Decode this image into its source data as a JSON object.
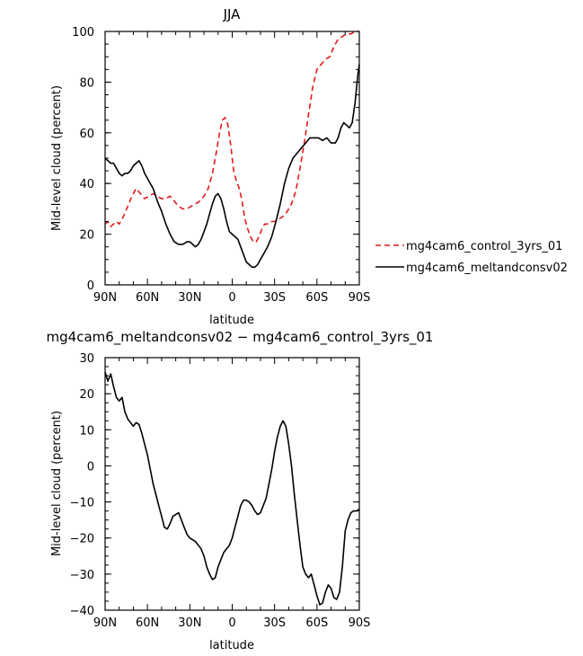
{
  "chart_data": [
    {
      "type": "line",
      "title": "JJA",
      "xlabel": "latitude",
      "ylabel": "Mid-level cloud (percent)",
      "xlim": [
        90,
        -90
      ],
      "ylim": [
        0,
        100
      ],
      "x_ticks": [
        90,
        60,
        30,
        0,
        -30,
        -60,
        -90
      ],
      "x_tick_labels": [
        "90N",
        "60N",
        "30N",
        "0",
        "30S",
        "60S",
        "90S"
      ],
      "y_ticks": [
        0,
        20,
        40,
        60,
        80,
        100
      ],
      "y_tick_labels": [
        "0",
        "20",
        "40",
        "60",
        "80",
        "100"
      ],
      "legend_position": "outside-right",
      "series": [
        {
          "name": "mg4cam6_control_3yrs_01",
          "color": "#e41a1c",
          "dash": "dashed",
          "points": [
            [
              90,
              24
            ],
            [
              88,
              25
            ],
            [
              86,
              23
            ],
            [
              84,
              24
            ],
            [
              82,
              25
            ],
            [
              80,
              24
            ],
            [
              77,
              27
            ],
            [
              74,
              31
            ],
            [
              71,
              35
            ],
            [
              68,
              38
            ],
            [
              65,
              36
            ],
            [
              62,
              34
            ],
            [
              59,
              35
            ],
            [
              56,
              36
            ],
            [
              53,
              35
            ],
            [
              50,
              34
            ],
            [
              47,
              34
            ],
            [
              44,
              35
            ],
            [
              41,
              33
            ],
            [
              38,
              31
            ],
            [
              35,
              30
            ],
            [
              32,
              30
            ],
            [
              29,
              31
            ],
            [
              26,
              32
            ],
            [
              23,
              33
            ],
            [
              20,
              35
            ],
            [
              17,
              38
            ],
            [
              14,
              44
            ],
            [
              11,
              53
            ],
            [
              9,
              60
            ],
            [
              7,
              65
            ],
            [
              5,
              66
            ],
            [
              3,
              63
            ],
            [
              1,
              55
            ],
            [
              -1,
              45
            ],
            [
              -3,
              41
            ],
            [
              -5,
              38
            ],
            [
              -7,
              33
            ],
            [
              -9,
              26
            ],
            [
              -11,
              22
            ],
            [
              -13,
              19
            ],
            [
              -15,
              17
            ],
            [
              -17,
              17
            ],
            [
              -19,
              19
            ],
            [
              -21,
              22
            ],
            [
              -23,
              24
            ],
            [
              -25,
              24
            ],
            [
              -27,
              25
            ],
            [
              -30,
              25
            ],
            [
              -33,
              26
            ],
            [
              -36,
              27
            ],
            [
              -39,
              29
            ],
            [
              -42,
              32
            ],
            [
              -45,
              37
            ],
            [
              -48,
              46
            ],
            [
              -51,
              56
            ],
            [
              -54,
              67
            ],
            [
              -57,
              78
            ],
            [
              -60,
              85
            ],
            [
              -63,
              87
            ],
            [
              -66,
              89
            ],
            [
              -69,
              90
            ],
            [
              -72,
              94
            ],
            [
              -75,
              97
            ],
            [
              -78,
              98
            ],
            [
              -81,
              99
            ],
            [
              -84,
              99
            ],
            [
              -87,
              100
            ],
            [
              -90,
              100
            ]
          ]
        },
        {
          "name": "mg4cam6_meltandconsv02",
          "color": "#000000",
          "dash": "solid",
          "points": [
            [
              90,
              50
            ],
            [
              88,
              49
            ],
            [
              86,
              48
            ],
            [
              84,
              48
            ],
            [
              82,
              46
            ],
            [
              80,
              44
            ],
            [
              78,
              43
            ],
            [
              76,
              44
            ],
            [
              74,
              44
            ],
            [
              72,
              45
            ],
            [
              70,
              47
            ],
            [
              68,
              48
            ],
            [
              66,
              49
            ],
            [
              64,
              47
            ],
            [
              62,
              44
            ],
            [
              59,
              41
            ],
            [
              56,
              38
            ],
            [
              53,
              33
            ],
            [
              50,
              29
            ],
            [
              47,
              24
            ],
            [
              44,
              20
            ],
            [
              41,
              17
            ],
            [
              38,
              16
            ],
            [
              35,
              16
            ],
            [
              32,
              17
            ],
            [
              30,
              17
            ],
            [
              28,
              16
            ],
            [
              26,
              15
            ],
            [
              24,
              16
            ],
            [
              22,
              18
            ],
            [
              20,
              21
            ],
            [
              18,
              24
            ],
            [
              16,
              28
            ],
            [
              14,
              32
            ],
            [
              12,
              35
            ],
            [
              10,
              36
            ],
            [
              8,
              34
            ],
            [
              6,
              30
            ],
            [
              4,
              25
            ],
            [
              2,
              21
            ],
            [
              0,
              20
            ],
            [
              -2,
              19
            ],
            [
              -4,
              18
            ],
            [
              -6,
              15
            ],
            [
              -8,
              12
            ],
            [
              -10,
              9
            ],
            [
              -12,
              8
            ],
            [
              -14,
              7
            ],
            [
              -16,
              7
            ],
            [
              -18,
              8
            ],
            [
              -20,
              10
            ],
            [
              -22,
              12
            ],
            [
              -25,
              15
            ],
            [
              -28,
              19
            ],
            [
              -31,
              25
            ],
            [
              -34,
              32
            ],
            [
              -37,
              40
            ],
            [
              -40,
              46
            ],
            [
              -43,
              50
            ],
            [
              -46,
              52
            ],
            [
              -49,
              54
            ],
            [
              -52,
              56
            ],
            [
              -55,
              58
            ],
            [
              -58,
              58
            ],
            [
              -61,
              58
            ],
            [
              -64,
              57
            ],
            [
              -67,
              58
            ],
            [
              -70,
              56
            ],
            [
              -73,
              56
            ],
            [
              -75,
              58
            ],
            [
              -77,
              62
            ],
            [
              -79,
              64
            ],
            [
              -81,
              63
            ],
            [
              -83,
              62
            ],
            [
              -85,
              64
            ],
            [
              -87,
              72
            ],
            [
              -89,
              83
            ],
            [
              -90,
              87
            ]
          ]
        }
      ]
    },
    {
      "type": "line",
      "title": "mg4cam6_meltandconsv02 − mg4cam6_control_3yrs_01",
      "xlabel": "latitude",
      "ylabel": "Mid-level cloud (percent)",
      "xlim": [
        90,
        -90
      ],
      "ylim": [
        -40,
        30
      ],
      "x_ticks": [
        90,
        60,
        30,
        0,
        -30,
        -60,
        -90
      ],
      "x_tick_labels": [
        "90N",
        "60N",
        "30N",
        "0",
        "30S",
        "60S",
        "90S"
      ],
      "y_ticks": [
        -40,
        -30,
        -20,
        -10,
        0,
        10,
        20,
        30
      ],
      "y_tick_labels": [
        "−40",
        "−30",
        "−20",
        "−10",
        "0",
        "10",
        "20",
        "30"
      ],
      "series": [
        {
          "color": "#000000",
          "dash": "solid",
          "points": [
            [
              90,
              26
            ],
            [
              88,
              23.5
            ],
            [
              86,
              25.5
            ],
            [
              84,
              22
            ],
            [
              82,
              19
            ],
            [
              80,
              18
            ],
            [
              78,
              19
            ],
            [
              76,
              15
            ],
            [
              74,
              13
            ],
            [
              72,
              12
            ],
            [
              70,
              11
            ],
            [
              68,
              12
            ],
            [
              66,
              11.5
            ],
            [
              64,
              9
            ],
            [
              62,
              6
            ],
            [
              60,
              3
            ],
            [
              58,
              -1
            ],
            [
              56,
              -5
            ],
            [
              54,
              -8
            ],
            [
              52,
              -11
            ],
            [
              50,
              -14
            ],
            [
              48,
              -17
            ],
            [
              46,
              -17.5
            ],
            [
              44,
              -16
            ],
            [
              42,
              -14
            ],
            [
              40,
              -13.5
            ],
            [
              38,
              -13
            ],
            [
              36,
              -15
            ],
            [
              34,
              -17
            ],
            [
              32,
              -19
            ],
            [
              30,
              -20
            ],
            [
              28,
              -20.5
            ],
            [
              26,
              -21
            ],
            [
              24,
              -22
            ],
            [
              22,
              -23
            ],
            [
              20,
              -25
            ],
            [
              18,
              -28
            ],
            [
              16,
              -30
            ],
            [
              14,
              -31.5
            ],
            [
              12,
              -31
            ],
            [
              10,
              -28
            ],
            [
              8,
              -26
            ],
            [
              6,
              -24
            ],
            [
              4,
              -23
            ],
            [
              2,
              -22
            ],
            [
              0,
              -20
            ],
            [
              -2,
              -17
            ],
            [
              -4,
              -14
            ],
            [
              -6,
              -11
            ],
            [
              -8,
              -9.5
            ],
            [
              -10,
              -9.5
            ],
            [
              -12,
              -10
            ],
            [
              -14,
              -11
            ],
            [
              -16,
              -12.5
            ],
            [
              -18,
              -13.5
            ],
            [
              -20,
              -13
            ],
            [
              -22,
              -11
            ],
            [
              -24,
              -9
            ],
            [
              -26,
              -5
            ],
            [
              -28,
              -1
            ],
            [
              -30,
              4
            ],
            [
              -32,
              8
            ],
            [
              -34,
              11
            ],
            [
              -36,
              12.5
            ],
            [
              -38,
              11
            ],
            [
              -40,
              6
            ],
            [
              -42,
              0
            ],
            [
              -44,
              -8
            ],
            [
              -46,
              -15
            ],
            [
              -48,
              -22
            ],
            [
              -50,
              -28
            ],
            [
              -52,
              -30
            ],
            [
              -54,
              -31
            ],
            [
              -56,
              -30
            ],
            [
              -58,
              -33
            ],
            [
              -60,
              -36
            ],
            [
              -62,
              -38.5
            ],
            [
              -64,
              -38
            ],
            [
              -66,
              -35
            ],
            [
              -68,
              -33
            ],
            [
              -70,
              -34
            ],
            [
              -72,
              -36.5
            ],
            [
              -74,
              -37
            ],
            [
              -76,
              -35
            ],
            [
              -78,
              -28
            ],
            [
              -80,
              -18
            ],
            [
              -82,
              -15
            ],
            [
              -84,
              -13
            ],
            [
              -86,
              -12.5
            ],
            [
              -88,
              -12.5
            ],
            [
              -90,
              -12
            ]
          ]
        }
      ]
    }
  ]
}
